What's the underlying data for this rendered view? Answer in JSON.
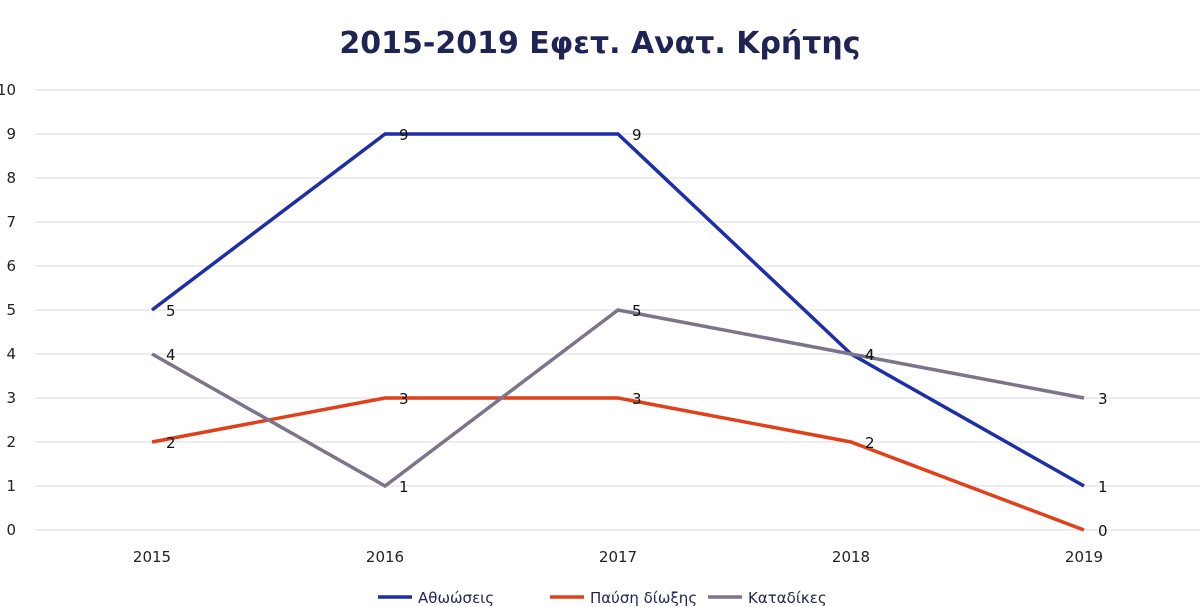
{
  "chart_data": {
    "type": "line",
    "title": "2015-2019 Εφετ. Ανατ. Κρήτης",
    "categories": [
      "2015",
      "2016",
      "2017",
      "2018",
      "2019"
    ],
    "ylim": [
      0,
      10
    ],
    "yticks": [
      "0",
      "1",
      "2",
      "3",
      "4",
      "5",
      "6",
      "7",
      "8",
      "9",
      "10"
    ],
    "grid": true,
    "legend_position": "bottom",
    "series": [
      {
        "name": "Αθωώσεις",
        "values": [
          5,
          9,
          9,
          4,
          1
        ],
        "color": "#1c2fa8"
      },
      {
        "name": "Παύση δίωξης",
        "values": [
          2,
          3,
          3,
          2,
          0
        ],
        "color": "#e0401a"
      },
      {
        "name": "Καταδίκες",
        "values": [
          4,
          1,
          5,
          4,
          3
        ],
        "color": "#7d7489"
      }
    ]
  }
}
